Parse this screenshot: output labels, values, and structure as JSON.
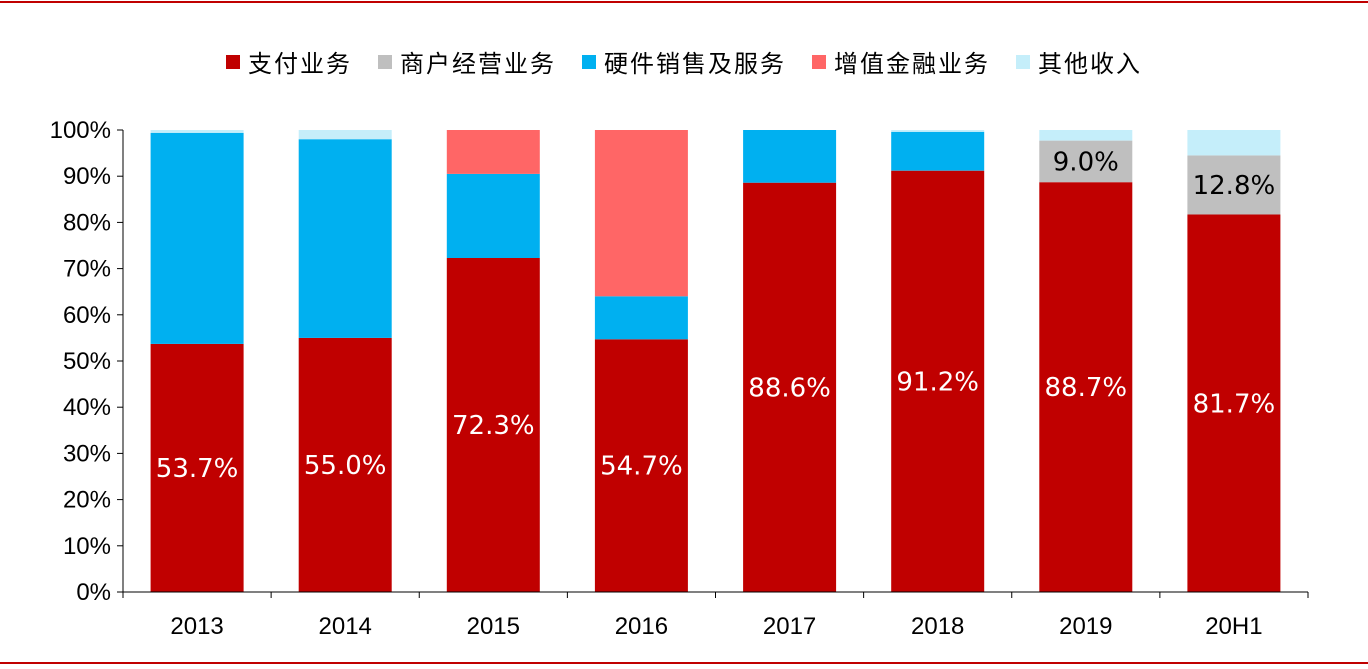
{
  "legend": [
    {
      "name": "支付业务",
      "color": "#c00000"
    },
    {
      "name": "商户经营业务",
      "color": "#bfbfbf"
    },
    {
      "name": "硬件销售及服务",
      "color": "#00b0f0"
    },
    {
      "name": "增值金融业务",
      "color": "#ff6666"
    },
    {
      "name": "其他收入",
      "color": "#c5eefa"
    }
  ],
  "chart_data": {
    "type": "bar",
    "stacked": true,
    "categories": [
      "2013",
      "2014",
      "2015",
      "2016",
      "2017",
      "2018",
      "2019",
      "20H1"
    ],
    "ylim": [
      0,
      100
    ],
    "yticks": [
      "0%",
      "10%",
      "20%",
      "30%",
      "40%",
      "50%",
      "60%",
      "70%",
      "80%",
      "90%",
      "100%"
    ],
    "legend_position": "top",
    "grid": false,
    "series": [
      {
        "name": "支付业务",
        "color": "#c00000",
        "values": [
          53.7,
          55.0,
          72.3,
          54.7,
          88.6,
          91.2,
          88.7,
          81.7
        ],
        "labels": [
          "53.7%",
          "55.0%",
          "72.3%",
          "54.7%",
          "88.6%",
          "91.2%",
          "88.7%",
          "81.7%"
        ],
        "label_color": "#ffffff"
      },
      {
        "name": "商户经营业务",
        "color": "#bfbfbf",
        "values": [
          0,
          0,
          0,
          0,
          0,
          0,
          9.0,
          12.8
        ],
        "labels": [
          "",
          "",
          "",
          "",
          "",
          "",
          "9.0%",
          "12.8%"
        ],
        "label_color": "#000000"
      },
      {
        "name": "硬件销售及服务",
        "color": "#00b0f0",
        "values": [
          45.7,
          43.0,
          18.2,
          9.3,
          11.4,
          8.4,
          0,
          0
        ],
        "labels": [],
        "label_color": "#000000"
      },
      {
        "name": "增值金融业务",
        "color": "#ff6666",
        "values": [
          0,
          0,
          9.5,
          36.0,
          0,
          0,
          0,
          0
        ],
        "labels": [],
        "label_color": "#000000"
      },
      {
        "name": "其他收入",
        "color": "#c5eefa",
        "values": [
          0.6,
          2.0,
          0,
          0,
          0,
          0.4,
          2.3,
          5.5
        ],
        "labels": [],
        "label_color": "#000000"
      }
    ]
  }
}
